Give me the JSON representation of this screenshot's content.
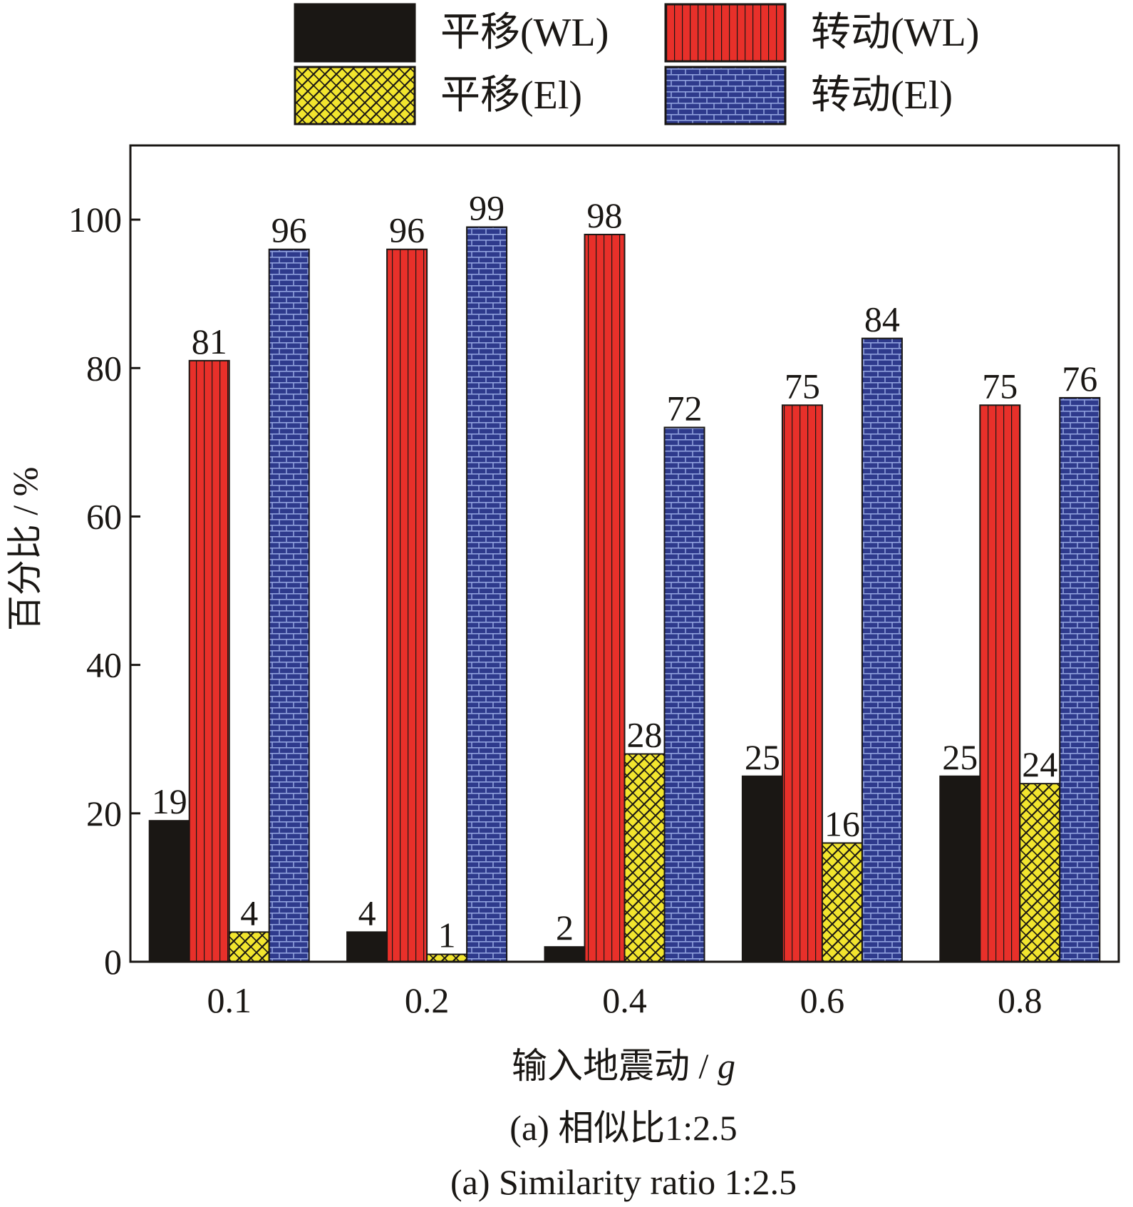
{
  "chart_data": {
    "type": "bar",
    "categories": [
      "0.1",
      "0.2",
      "0.4",
      "0.6",
      "0.8"
    ],
    "series": [
      {
        "name": "平移(WL)",
        "values": [
          19,
          4,
          2,
          25,
          25
        ],
        "color": "#1a1714",
        "pattern": "solid"
      },
      {
        "name": "转动(WL)",
        "values": [
          81,
          96,
          98,
          75,
          75
        ],
        "color": "#e8302a",
        "pattern": "vertical-stripes"
      },
      {
        "name": "平移(El)",
        "values": [
          4,
          1,
          28,
          16,
          24
        ],
        "color": "#f2e52e",
        "pattern": "crosshatch"
      },
      {
        "name": "转动(El)",
        "values": [
          96,
          99,
          72,
          84,
          76
        ],
        "color": "#2e3a8c",
        "pattern": "brick"
      }
    ],
    "xlabel": "输入地震动 / g",
    "ylabel": "百分比 / %",
    "ylim": [
      0,
      110
    ],
    "yticks": [
      0,
      20,
      40,
      60,
      80,
      100
    ],
    "grid": false,
    "legend_position": "top"
  },
  "captions": {
    "cn": "(a) 相似比1:2.5",
    "en": "(a) Similarity ratio 1:2.5"
  }
}
